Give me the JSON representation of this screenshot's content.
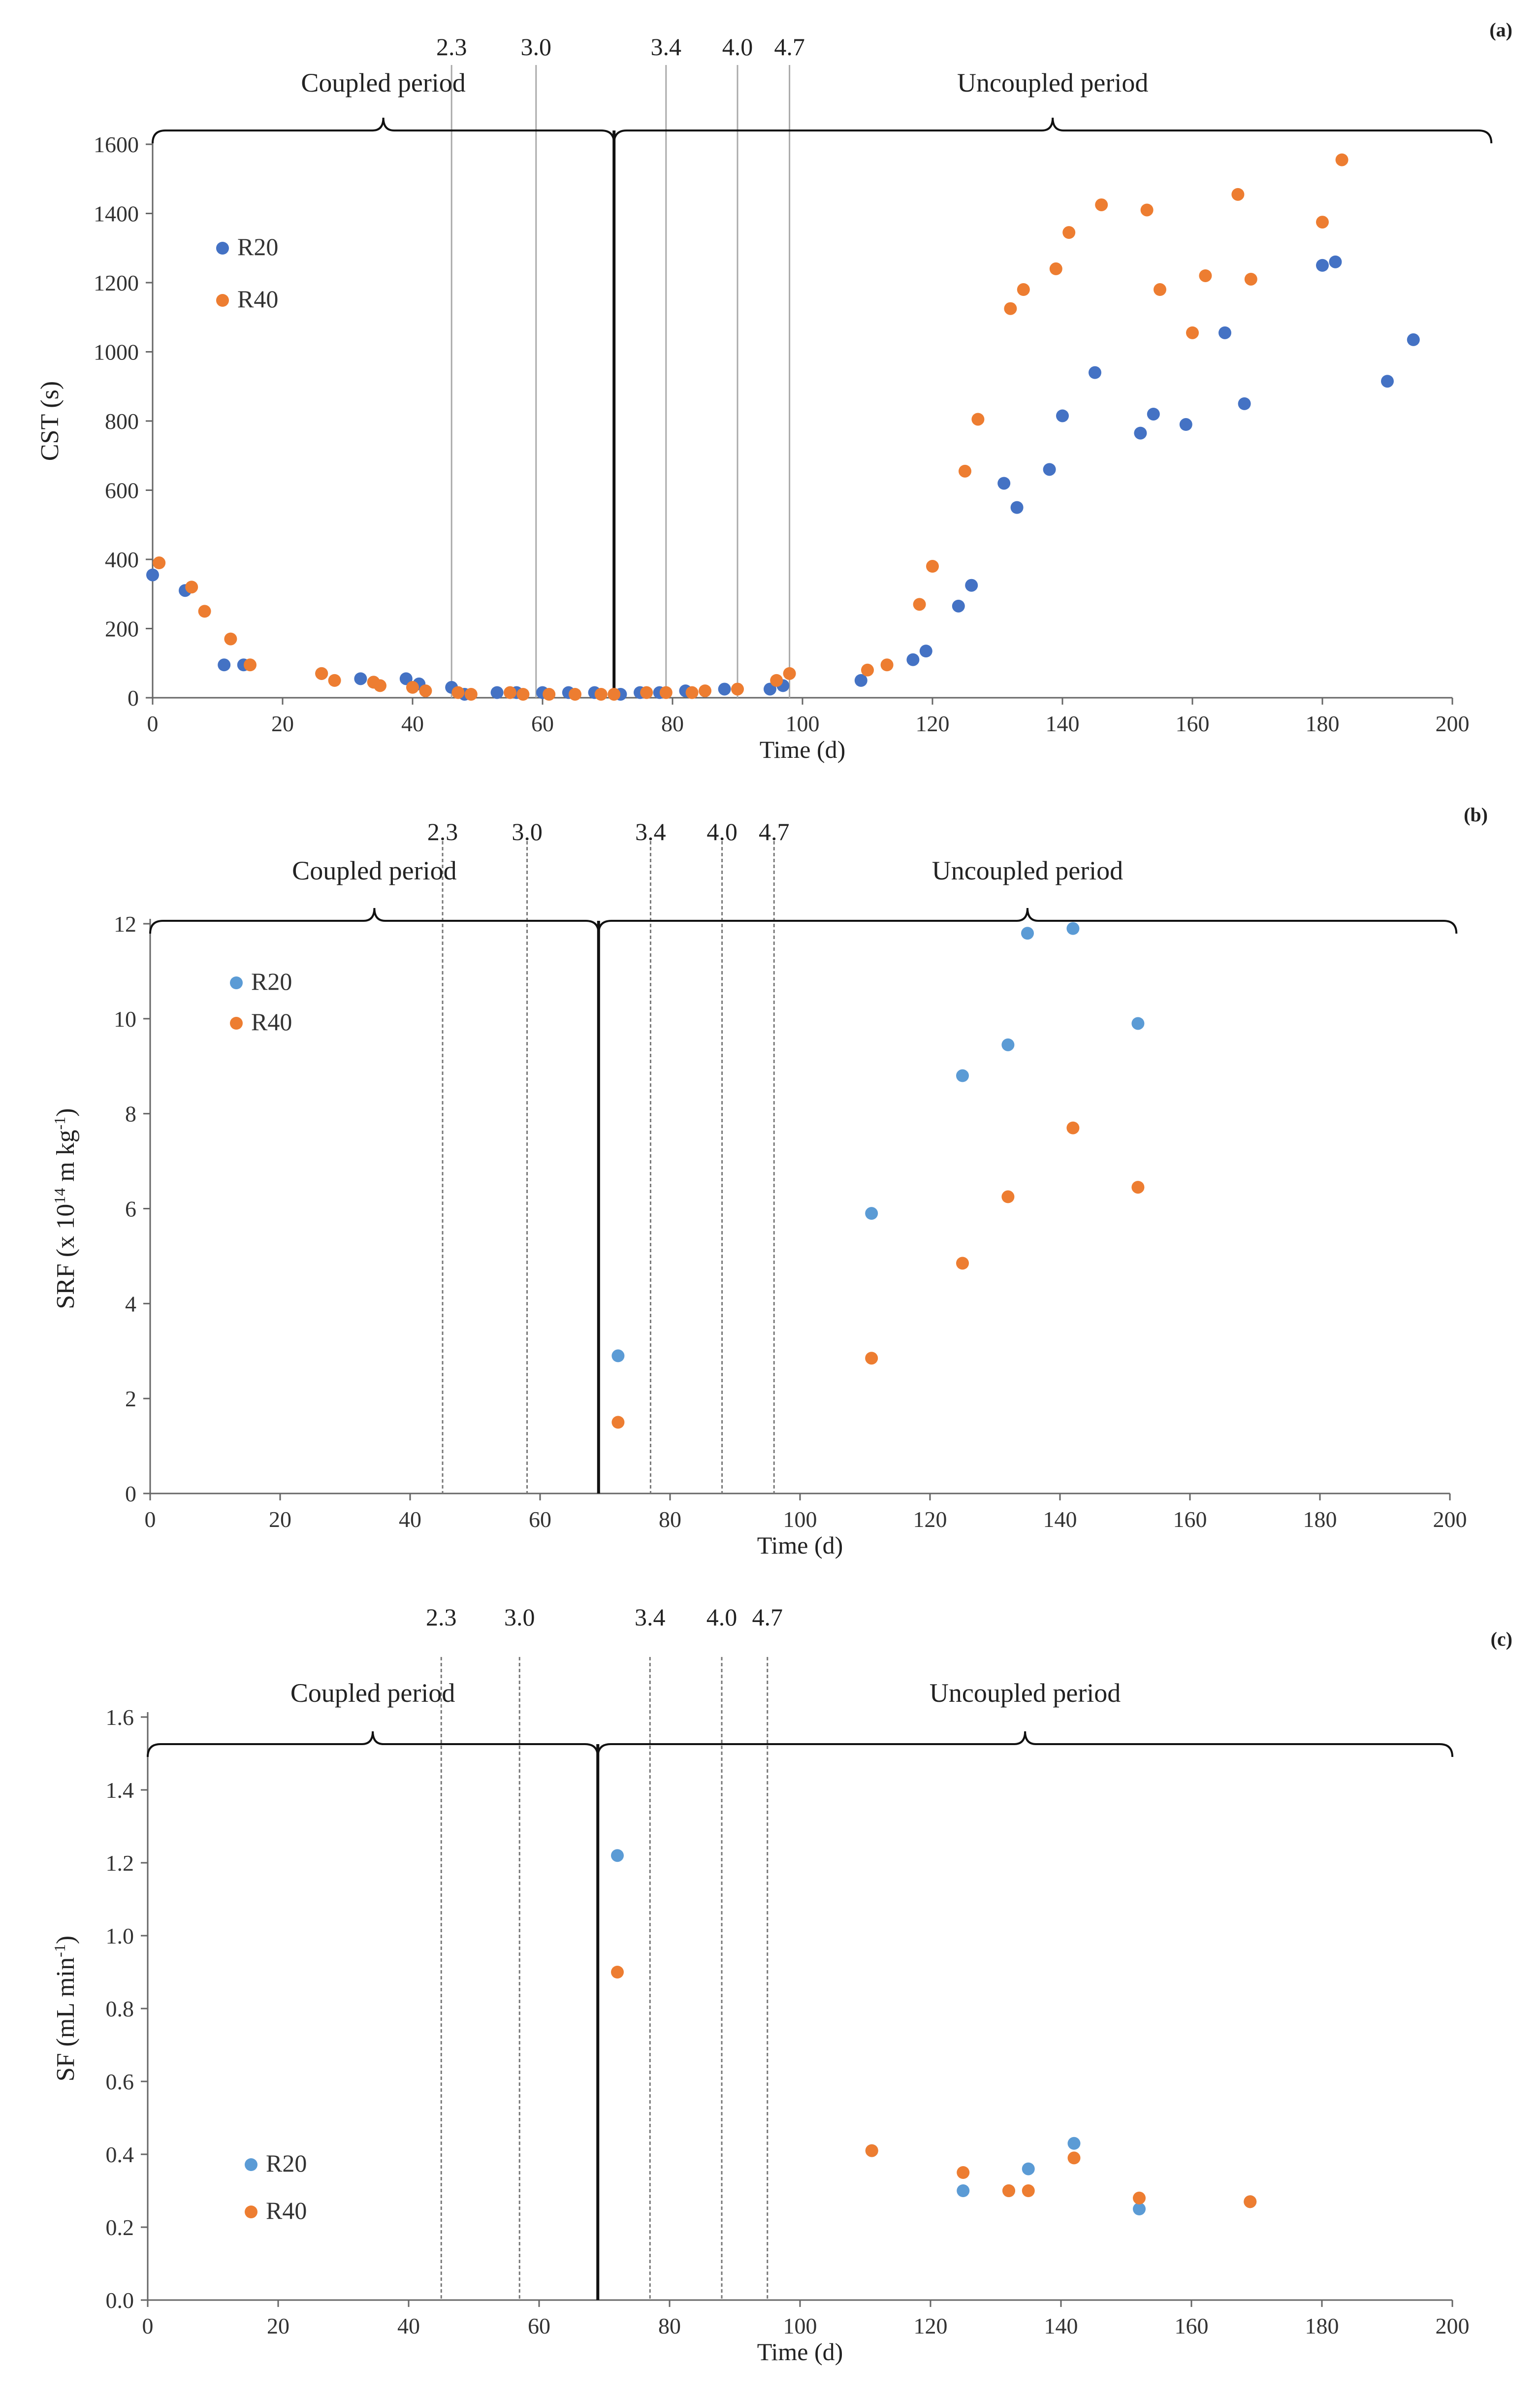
{
  "chart_data": [
    {
      "type": "scatter",
      "panel_label": "(a)",
      "xlabel": "Time (d)",
      "ylabel": "CST (s)",
      "xlim": [
        0,
        200
      ],
      "ylim": [
        0,
        1600
      ],
      "x_ticks": [
        0,
        20,
        40,
        60,
        80,
        100,
        120,
        140,
        160,
        180,
        200
      ],
      "y_ticks": [
        0,
        200,
        400,
        600,
        800,
        1000,
        1200,
        1400,
        1600
      ],
      "y_tick_labels": [
        "0",
        "200",
        "400",
        "600",
        "800",
        "1000",
        "1200",
        "1400",
        "1600"
      ],
      "legend_placement": "upper-left",
      "periods": [
        {
          "label": "Coupled period",
          "start": 0,
          "end": 71
        },
        {
          "label": "Uncoupled period",
          "start": 71,
          "end": 206
        }
      ],
      "period_boundary": 71,
      "ph_markers": [
        {
          "label": "2.3",
          "x": 46
        },
        {
          "label": "3.0",
          "x": 59
        },
        {
          "label": "3.4",
          "x": 79
        },
        {
          "label": "4.0",
          "x": 90
        },
        {
          "label": "4.7",
          "x": 98
        }
      ],
      "series": [
        {
          "name": "R20",
          "color": "#4472C4",
          "points": [
            [
              0,
              355
            ],
            [
              5,
              310
            ],
            [
              11,
              95
            ],
            [
              14,
              95
            ],
            [
              26,
              70
            ],
            [
              32,
              55
            ],
            [
              34,
              45
            ],
            [
              39,
              55
            ],
            [
              41,
              40
            ],
            [
              46,
              30
            ],
            [
              48,
              10
            ],
            [
              53,
              15
            ],
            [
              56,
              15
            ],
            [
              60,
              15
            ],
            [
              64,
              15
            ],
            [
              68,
              15
            ],
            [
              72,
              10
            ],
            [
              75,
              15
            ],
            [
              78,
              15
            ],
            [
              82,
              20
            ],
            [
              88,
              25
            ],
            [
              95,
              25
            ],
            [
              97,
              35
            ],
            [
              109,
              50
            ],
            [
              117,
              110
            ],
            [
              119,
              135
            ],
            [
              124,
              265
            ],
            [
              126,
              325
            ],
            [
              131,
              620
            ],
            [
              133,
              550
            ],
            [
              138,
              660
            ],
            [
              140,
              815
            ],
            [
              145,
              940
            ],
            [
              152,
              765
            ],
            [
              154,
              820
            ],
            [
              159,
              790
            ],
            [
              165,
              1055
            ],
            [
              168,
              850
            ],
            [
              180,
              1250
            ],
            [
              182,
              1260
            ],
            [
              190,
              915
            ],
            [
              194,
              1035
            ]
          ]
        },
        {
          "name": "R40",
          "color": "#ED7D31",
          "points": [
            [
              1,
              390
            ],
            [
              6,
              320
            ],
            [
              8,
              250
            ],
            [
              12,
              170
            ],
            [
              15,
              95
            ],
            [
              26,
              70
            ],
            [
              28,
              50
            ],
            [
              34,
              45
            ],
            [
              35,
              35
            ],
            [
              40,
              30
            ],
            [
              42,
              20
            ],
            [
              47,
              15
            ],
            [
              49,
              10
            ],
            [
              55,
              15
            ],
            [
              57,
              10
            ],
            [
              61,
              10
            ],
            [
              65,
              10
            ],
            [
              69,
              10
            ],
            [
              71,
              10
            ],
            [
              76,
              15
            ],
            [
              79,
              15
            ],
            [
              83,
              15
            ],
            [
              85,
              20
            ],
            [
              90,
              25
            ],
            [
              96,
              50
            ],
            [
              98,
              70
            ],
            [
              110,
              80
            ],
            [
              113,
              95
            ],
            [
              118,
              270
            ],
            [
              120,
              380
            ],
            [
              125,
              655
            ],
            [
              127,
              805
            ],
            [
              132,
              1125
            ],
            [
              134,
              1180
            ],
            [
              139,
              1240
            ],
            [
              141,
              1345
            ],
            [
              146,
              1425
            ],
            [
              153,
              1410
            ],
            [
              155,
              1180
            ],
            [
              160,
              1055
            ],
            [
              162,
              1220
            ],
            [
              167,
              1455
            ],
            [
              169,
              1210
            ],
            [
              180,
              1375
            ],
            [
              183,
              1555
            ]
          ]
        }
      ]
    },
    {
      "type": "scatter",
      "panel_label": "(b)",
      "xlabel": "Time (d)",
      "ylabel": "SRF (x 10",
      "ylabel_superscript": "14",
      "ylabel_suffix": " m kg",
      "ylabel_suffix_superscript": "-1",
      "ylabel_end": ")",
      "xlim": [
        0,
        200
      ],
      "ylim": [
        0,
        12
      ],
      "x_ticks": [
        0,
        20,
        40,
        60,
        80,
        100,
        120,
        140,
        160,
        180,
        200
      ],
      "y_ticks": [
        0,
        2,
        4,
        6,
        8,
        10,
        12
      ],
      "y_tick_labels": [
        "0",
        "2",
        "4",
        "6",
        "8",
        "10",
        "12"
      ],
      "legend_placement": "upper-left",
      "periods": [
        {
          "label": "Coupled period",
          "start": 0,
          "end": 69
        },
        {
          "label": "Uncoupled period",
          "start": 69,
          "end": 201
        }
      ],
      "period_boundary": 69,
      "ph_markers": [
        {
          "label": "2.3",
          "x": 45
        },
        {
          "label": "3.0",
          "x": 58
        },
        {
          "label": "3.4",
          "x": 77
        },
        {
          "label": "4.0",
          "x": 88
        },
        {
          "label": "4.7",
          "x": 96
        }
      ],
      "series": [
        {
          "name": "R20",
          "color": "#5B9BD5",
          "points": [
            [
              72,
              2.9
            ],
            [
              111,
              5.9
            ],
            [
              125,
              8.8
            ],
            [
              132,
              9.45
            ],
            [
              135,
              11.8
            ],
            [
              142,
              11.9
            ],
            [
              152,
              9.9
            ]
          ]
        },
        {
          "name": "R40",
          "color": "#ED7D31",
          "points": [
            [
              72,
              1.5
            ],
            [
              111,
              2.85
            ],
            [
              125,
              4.85
            ],
            [
              132,
              6.25
            ],
            [
              142,
              7.7
            ],
            [
              152,
              6.45
            ]
          ]
        }
      ]
    },
    {
      "type": "scatter",
      "panel_label": "(c)",
      "xlabel": "Time (d)",
      "ylabel": "SF (mL min",
      "ylabel_superscript": "-1",
      "ylabel_end": ")",
      "xlim": [
        0,
        200
      ],
      "ylim": [
        0,
        1.6
      ],
      "x_ticks": [
        0,
        20,
        40,
        60,
        80,
        100,
        120,
        140,
        160,
        180,
        200
      ],
      "y_ticks": [
        0,
        0.2,
        0.4,
        0.6,
        0.8,
        1.0,
        1.2,
        1.4,
        1.6
      ],
      "y_tick_labels": [
        "0.0",
        "0.2",
        "0.4",
        "0.6",
        "0.8",
        "1.0",
        "1.2",
        "1.4",
        "1.6"
      ],
      "legend_placement": "lower-left",
      "periods": [
        {
          "label": "Coupled period",
          "start": 0,
          "end": 69
        },
        {
          "label": "Uncoupled period",
          "start": 69,
          "end": 200
        }
      ],
      "period_boundary": 69,
      "ph_markers": [
        {
          "label": "2.3",
          "x": 45
        },
        {
          "label": "3.0",
          "x": 57
        },
        {
          "label": "3.4",
          "x": 77
        },
        {
          "label": "4.0",
          "x": 88
        },
        {
          "label": "4.7",
          "x": 95
        }
      ],
      "series": [
        {
          "name": "R20",
          "color": "#5B9BD5",
          "points": [
            [
              72,
              1.22
            ],
            [
              111,
              0.41
            ],
            [
              125,
              0.3
            ],
            [
              132,
              0.3
            ],
            [
              135,
              0.36
            ],
            [
              142,
              0.43
            ],
            [
              152,
              0.25
            ],
            [
              169,
              0.27
            ]
          ]
        },
        {
          "name": "R40",
          "color": "#ED7D31",
          "points": [
            [
              72,
              0.9
            ],
            [
              111,
              0.41
            ],
            [
              125,
              0.35
            ],
            [
              132,
              0.3
            ],
            [
              135,
              0.3
            ],
            [
              142,
              0.39
            ],
            [
              152,
              0.28
            ],
            [
              169,
              0.27
            ]
          ]
        }
      ]
    }
  ]
}
